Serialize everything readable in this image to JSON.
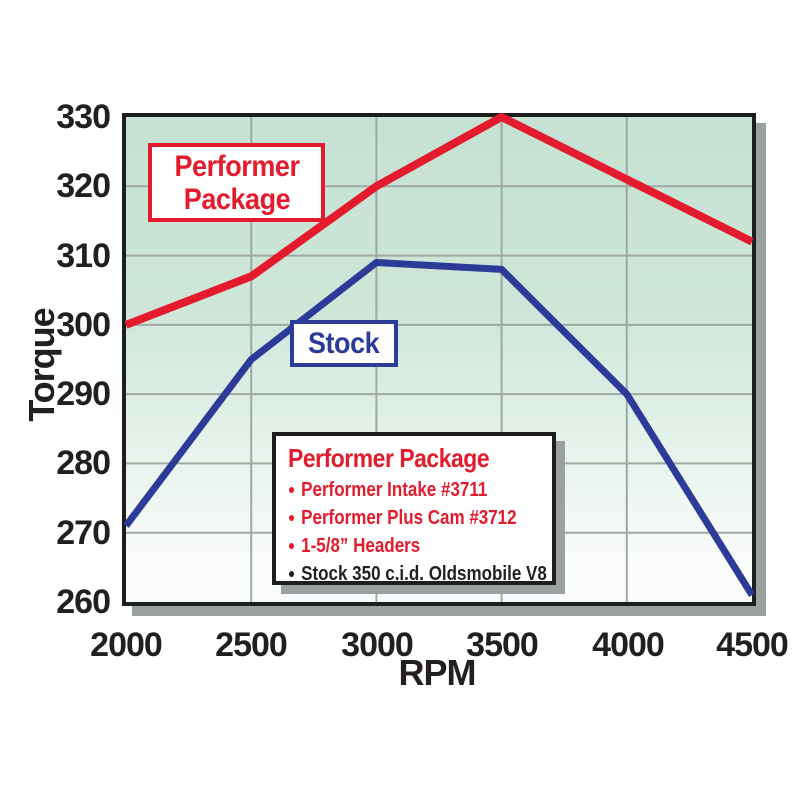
{
  "chart_data": {
    "type": "line",
    "title": "",
    "xlabel": "RPM",
    "ylabel": "Torque",
    "x": [
      2000,
      2500,
      3000,
      3500,
      4000,
      4500
    ],
    "series": [
      {
        "name": "Performer Package",
        "color": "#e31b2c",
        "stroke_width": 8,
        "values": [
          300,
          307,
          320,
          330,
          321,
          312
        ]
      },
      {
        "name": "Stock",
        "color": "#2c3b97",
        "stroke_width": 7,
        "values": [
          271,
          295,
          309,
          308,
          290,
          261
        ]
      }
    ],
    "xlim": [
      2000,
      4500
    ],
    "ylim": [
      260,
      330
    ],
    "x_ticks": [
      "2000",
      "2500",
      "3000",
      "3500",
      "4000",
      "4500"
    ],
    "y_ticks": [
      "330",
      "320",
      "310",
      "300",
      "290",
      "280",
      "270",
      "260"
    ],
    "grid_x": [
      2500,
      3000,
      3500,
      4000
    ],
    "grid_y": [
      320,
      310,
      300,
      290,
      280,
      270
    ],
    "grid_on": true,
    "grid_color": "#9fa8a3",
    "plot_bg_top": "#c5e2d3",
    "plot_bg_mid": "#cde6d8",
    "plot_bg_bottom": "#fafcfa",
    "border_color": "#1c1f1e",
    "shadow_color": "#9ba19e",
    "legend_position": "inside bottom-center"
  },
  "annotations": {
    "performer_label": "Performer Package",
    "stock_label": "Stock"
  },
  "legend": {
    "title": "Performer Package",
    "bullet": "●",
    "items": [
      {
        "text": "Performer Intake #3711",
        "color": "#e31b2c"
      },
      {
        "text": "Performer Plus Cam #3712",
        "color": "#e31b2c"
      },
      {
        "text": "1-5/8” Headers",
        "color": "#e31b2c"
      },
      {
        "text": "Stock 350 c.i.d. Oldsmobile V8",
        "color": "#231f20"
      }
    ]
  }
}
